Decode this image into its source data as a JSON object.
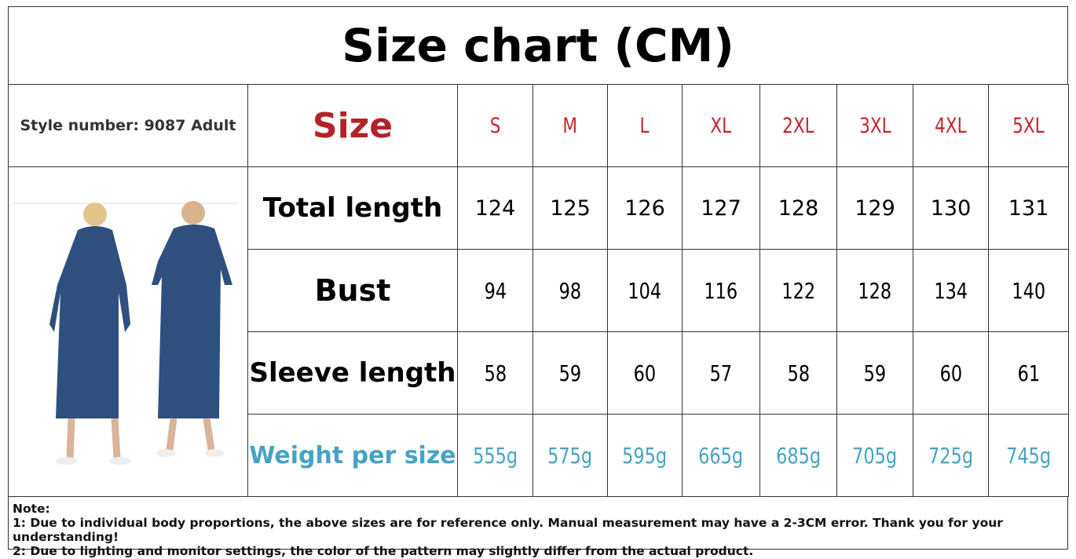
{
  "title": "Size chart (CM)",
  "style_number": "Style number: 9087 Adult",
  "table": {
    "header": [
      "Size",
      "S",
      "M",
      "L",
      "XL",
      "2XL",
      "3XL",
      "4XL",
      "5XL"
    ],
    "rows": [
      [
        "Total length",
        "124",
        "125",
        "126",
        "127",
        "128",
        "129",
        "130",
        "131"
      ],
      [
        "Bust",
        "94",
        "98",
        "104",
        "116",
        "122",
        "128",
        "134",
        "140"
      ],
      [
        "Sleeve length",
        "58",
        "59",
        "60",
        "57",
        "58",
        "59",
        "60",
        "61"
      ],
      [
        "Weight per size",
        "555g",
        "575g",
        "595g",
        "665g",
        "685g",
        "705g",
        "725g",
        "745g"
      ]
    ]
  },
  "note": {
    "heading": "Note:",
    "lines": [
      "1: Due to individual body proportions, the above sizes are for reference only. Manual measurement may have a 2-3CM error. Thank you for your understanding!",
      "2: Due to lighting and monitor settings, the color of the pattern may slightly differ from the actual product."
    ]
  }
}
